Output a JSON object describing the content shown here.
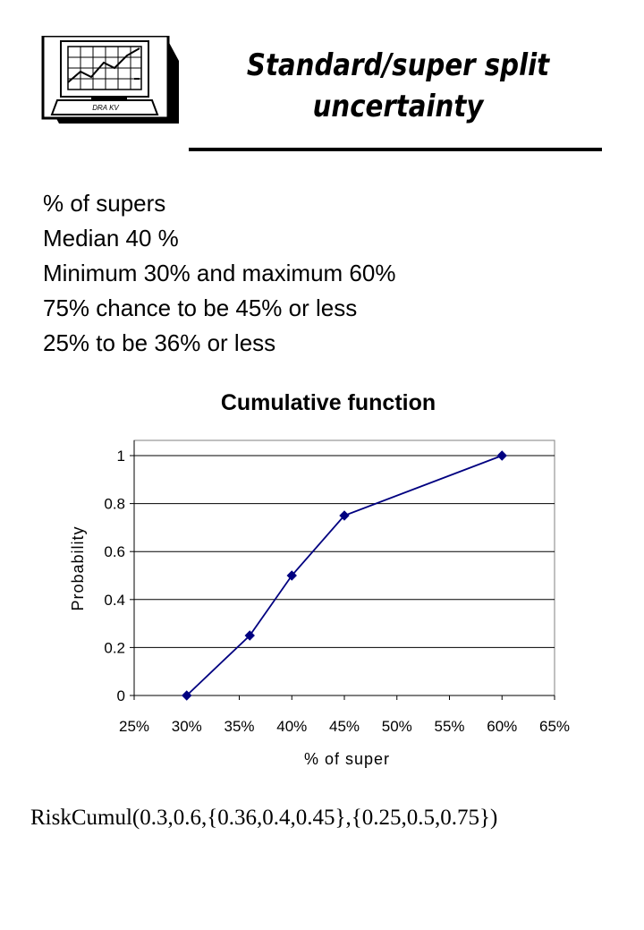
{
  "header": {
    "title_line1": "Standard/super split",
    "title_line2": "uncertainty",
    "logo_label": "DRA KV"
  },
  "bullets": [
    "% of supers",
    "Median 40 %",
    "Minimum 30% and maximum 60%",
    "75% chance to be 45% or less",
    "25% to be 36% or less"
  ],
  "chart_data": {
    "type": "line",
    "title": "Cumulative function",
    "xlabel": "% of super",
    "ylabel": "Probability",
    "x": [
      0.3,
      0.36,
      0.4,
      0.45,
      0.6
    ],
    "y": [
      0,
      0.25,
      0.5,
      0.75,
      1
    ],
    "xlim": [
      0.25,
      0.65
    ],
    "ylim": [
      0,
      1
    ],
    "x_ticks": [
      "25%",
      "30%",
      "35%",
      "40%",
      "45%",
      "50%",
      "55%",
      "60%",
      "65%"
    ],
    "y_ticks": [
      "0",
      "0.2",
      "0.4",
      "0.6",
      "0.8",
      "1"
    ],
    "grid": "horizontal",
    "legend": "none",
    "line_color": "#000080",
    "marker": "diamond"
  },
  "formula": "RiskCumul(0.3,0.6,{0.36,0.4,0.45},{0.25,0.5,0.75})"
}
